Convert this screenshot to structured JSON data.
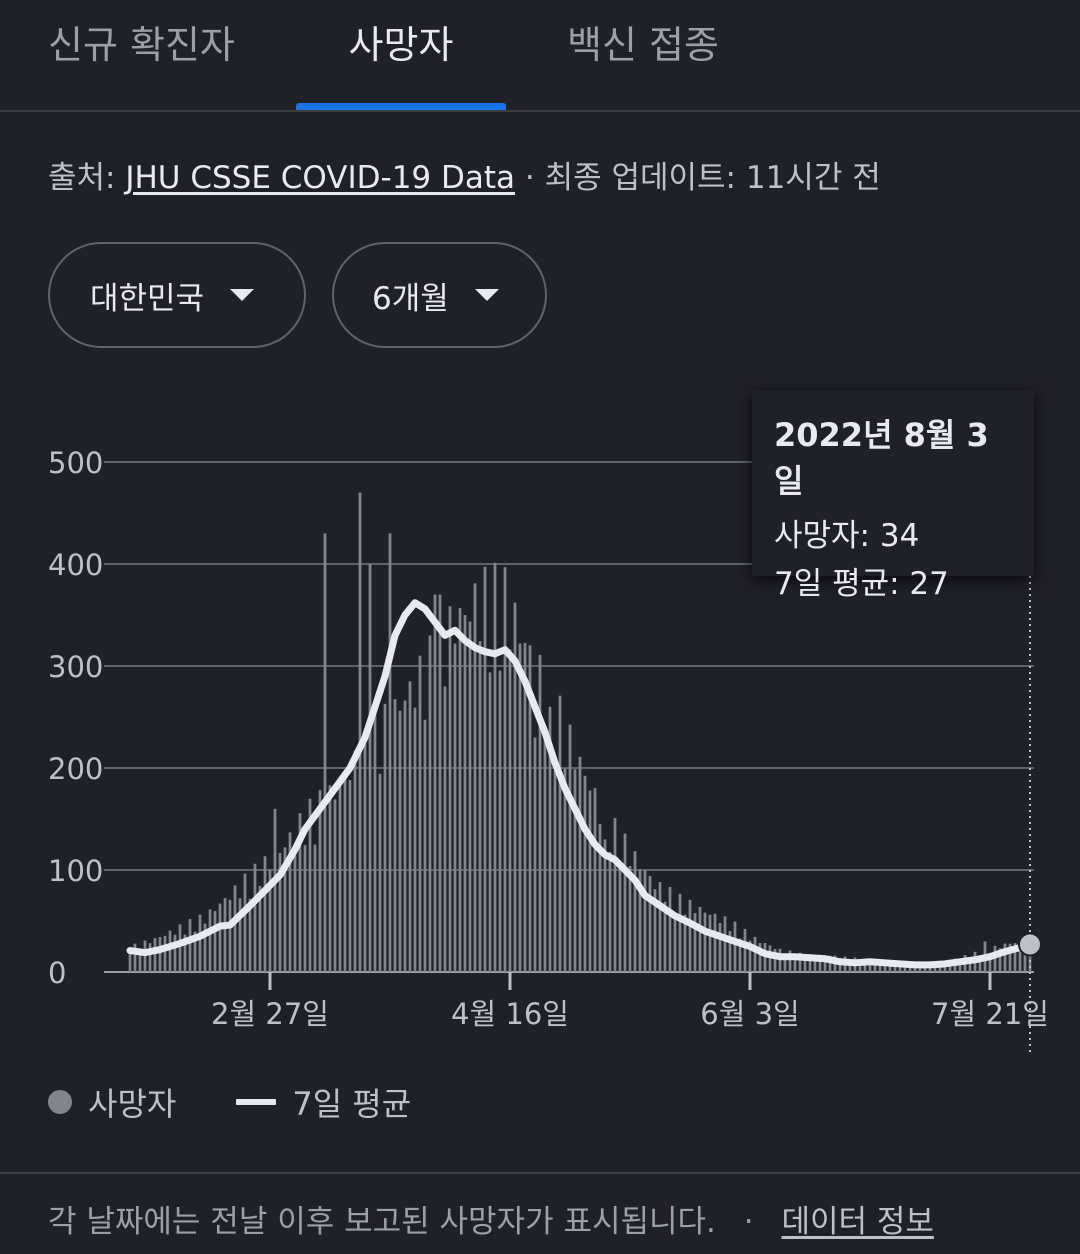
{
  "tabs": [
    {
      "label": "신규 확진자",
      "selected": false
    },
    {
      "label": "사망자",
      "selected": true
    },
    {
      "label": "백신 접종",
      "selected": false
    }
  ],
  "source": {
    "prefix": "출처: ",
    "link": "JHU CSSE COVID-19 Data",
    "suffix": " · 최종 업데이트: 11시간 전"
  },
  "filters": {
    "region": "대한민국",
    "period": "6개월"
  },
  "tooltip": {
    "date": "2022년 8월 3일",
    "deaths": "사망자: 34",
    "avg": "7일 평균: 27"
  },
  "legend": {
    "deaths": "사망자",
    "avg": "7일 평균"
  },
  "footer": {
    "text": "각 날짜에는 전날 이후 보고된 사망자가 표시됩니다.",
    "sep": "·",
    "link": "데이터 정보"
  },
  "colors": {
    "accent": "#1a73e8",
    "bar": "#80868b",
    "line": "#e8eaed",
    "background": "#202124"
  },
  "chart_data": {
    "type": "bar",
    "title": "",
    "ylim": [
      0,
      500
    ],
    "yticks": [
      "0",
      "100",
      "200",
      "300",
      "400",
      "500"
    ],
    "xtick_labels": [
      {
        "label": "2월 27일",
        "day": 28
      },
      {
        "label": "4월 16일",
        "day": 76
      },
      {
        "label": "6월 3일",
        "day": 124
      },
      {
        "label": "7월 21일",
        "day": 172
      }
    ],
    "bar_anchors": [
      [
        0,
        22
      ],
      [
        5,
        30
      ],
      [
        10,
        40
      ],
      [
        15,
        50
      ],
      [
        20,
        70
      ],
      [
        25,
        90
      ],
      [
        30,
        110
      ],
      [
        35,
        140
      ],
      [
        40,
        160
      ],
      [
        45,
        190
      ],
      [
        50,
        220
      ],
      [
        55,
        250
      ],
      [
        60,
        280
      ],
      [
        65,
        320
      ],
      [
        70,
        340
      ],
      [
        75,
        340
      ],
      [
        80,
        290
      ],
      [
        85,
        240
      ],
      [
        90,
        190
      ],
      [
        95,
        140
      ],
      [
        100,
        110
      ],
      [
        105,
        80
      ],
      [
        110,
        65
      ],
      [
        115,
        55
      ],
      [
        120,
        45
      ],
      [
        125,
        30
      ],
      [
        130,
        20
      ],
      [
        135,
        15
      ],
      [
        140,
        15
      ],
      [
        145,
        12
      ],
      [
        150,
        10
      ],
      [
        155,
        8
      ],
      [
        160,
        8
      ],
      [
        165,
        12
      ],
      [
        170,
        18
      ],
      [
        175,
        25
      ],
      [
        180,
        30
      ]
    ],
    "spikes": [
      [
        39,
        430
      ],
      [
        46,
        470
      ],
      [
        48,
        400
      ],
      [
        52,
        430
      ],
      [
        61,
        370
      ],
      [
        62,
        370
      ],
      [
        84,
        260
      ],
      [
        81,
        230
      ],
      [
        67,
        350
      ],
      [
        29,
        160
      ],
      [
        95,
        130
      ],
      [
        171,
        30
      ]
    ],
    "series": [
      {
        "name": "7일 평균",
        "points": [
          [
            0,
            21
          ],
          [
            3,
            19
          ],
          [
            6,
            22
          ],
          [
            10,
            28
          ],
          [
            14,
            35
          ],
          [
            18,
            45
          ],
          [
            20,
            46
          ],
          [
            24,
            65
          ],
          [
            27,
            80
          ],
          [
            30,
            95
          ],
          [
            33,
            120
          ],
          [
            35,
            140
          ],
          [
            38,
            160
          ],
          [
            41,
            180
          ],
          [
            44,
            200
          ],
          [
            47,
            230
          ],
          [
            49,
            260
          ],
          [
            51,
            290
          ],
          [
            53,
            330
          ],
          [
            55,
            350
          ],
          [
            57,
            362
          ],
          [
            59,
            356
          ],
          [
            61,
            343
          ],
          [
            63,
            330
          ],
          [
            65,
            335
          ],
          [
            67,
            325
          ],
          [
            69,
            318
          ],
          [
            71,
            314
          ],
          [
            73,
            312
          ],
          [
            75,
            316
          ],
          [
            77,
            305
          ],
          [
            79,
            285
          ],
          [
            81,
            260
          ],
          [
            83,
            235
          ],
          [
            85,
            205
          ],
          [
            87,
            180
          ],
          [
            89,
            160
          ],
          [
            91,
            140
          ],
          [
            93,
            125
          ],
          [
            95,
            115
          ],
          [
            97,
            110
          ],
          [
            99,
            100
          ],
          [
            101,
            90
          ],
          [
            103,
            75
          ],
          [
            106,
            65
          ],
          [
            109,
            55
          ],
          [
            112,
            48
          ],
          [
            115,
            40
          ],
          [
            118,
            35
          ],
          [
            121,
            30
          ],
          [
            124,
            25
          ],
          [
            127,
            18
          ],
          [
            130,
            15
          ],
          [
            133,
            15
          ],
          [
            136,
            14
          ],
          [
            139,
            13
          ],
          [
            142,
            10
          ],
          [
            145,
            9
          ],
          [
            148,
            10
          ],
          [
            151,
            9
          ],
          [
            154,
            8
          ],
          [
            157,
            7
          ],
          [
            160,
            7
          ],
          [
            163,
            8
          ],
          [
            166,
            10
          ],
          [
            169,
            12
          ],
          [
            172,
            15
          ],
          [
            175,
            20
          ],
          [
            178,
            24
          ],
          [
            180,
            27
          ]
        ]
      }
    ],
    "highlight": {
      "day": 180,
      "deaths": 34,
      "avg": 27
    }
  }
}
